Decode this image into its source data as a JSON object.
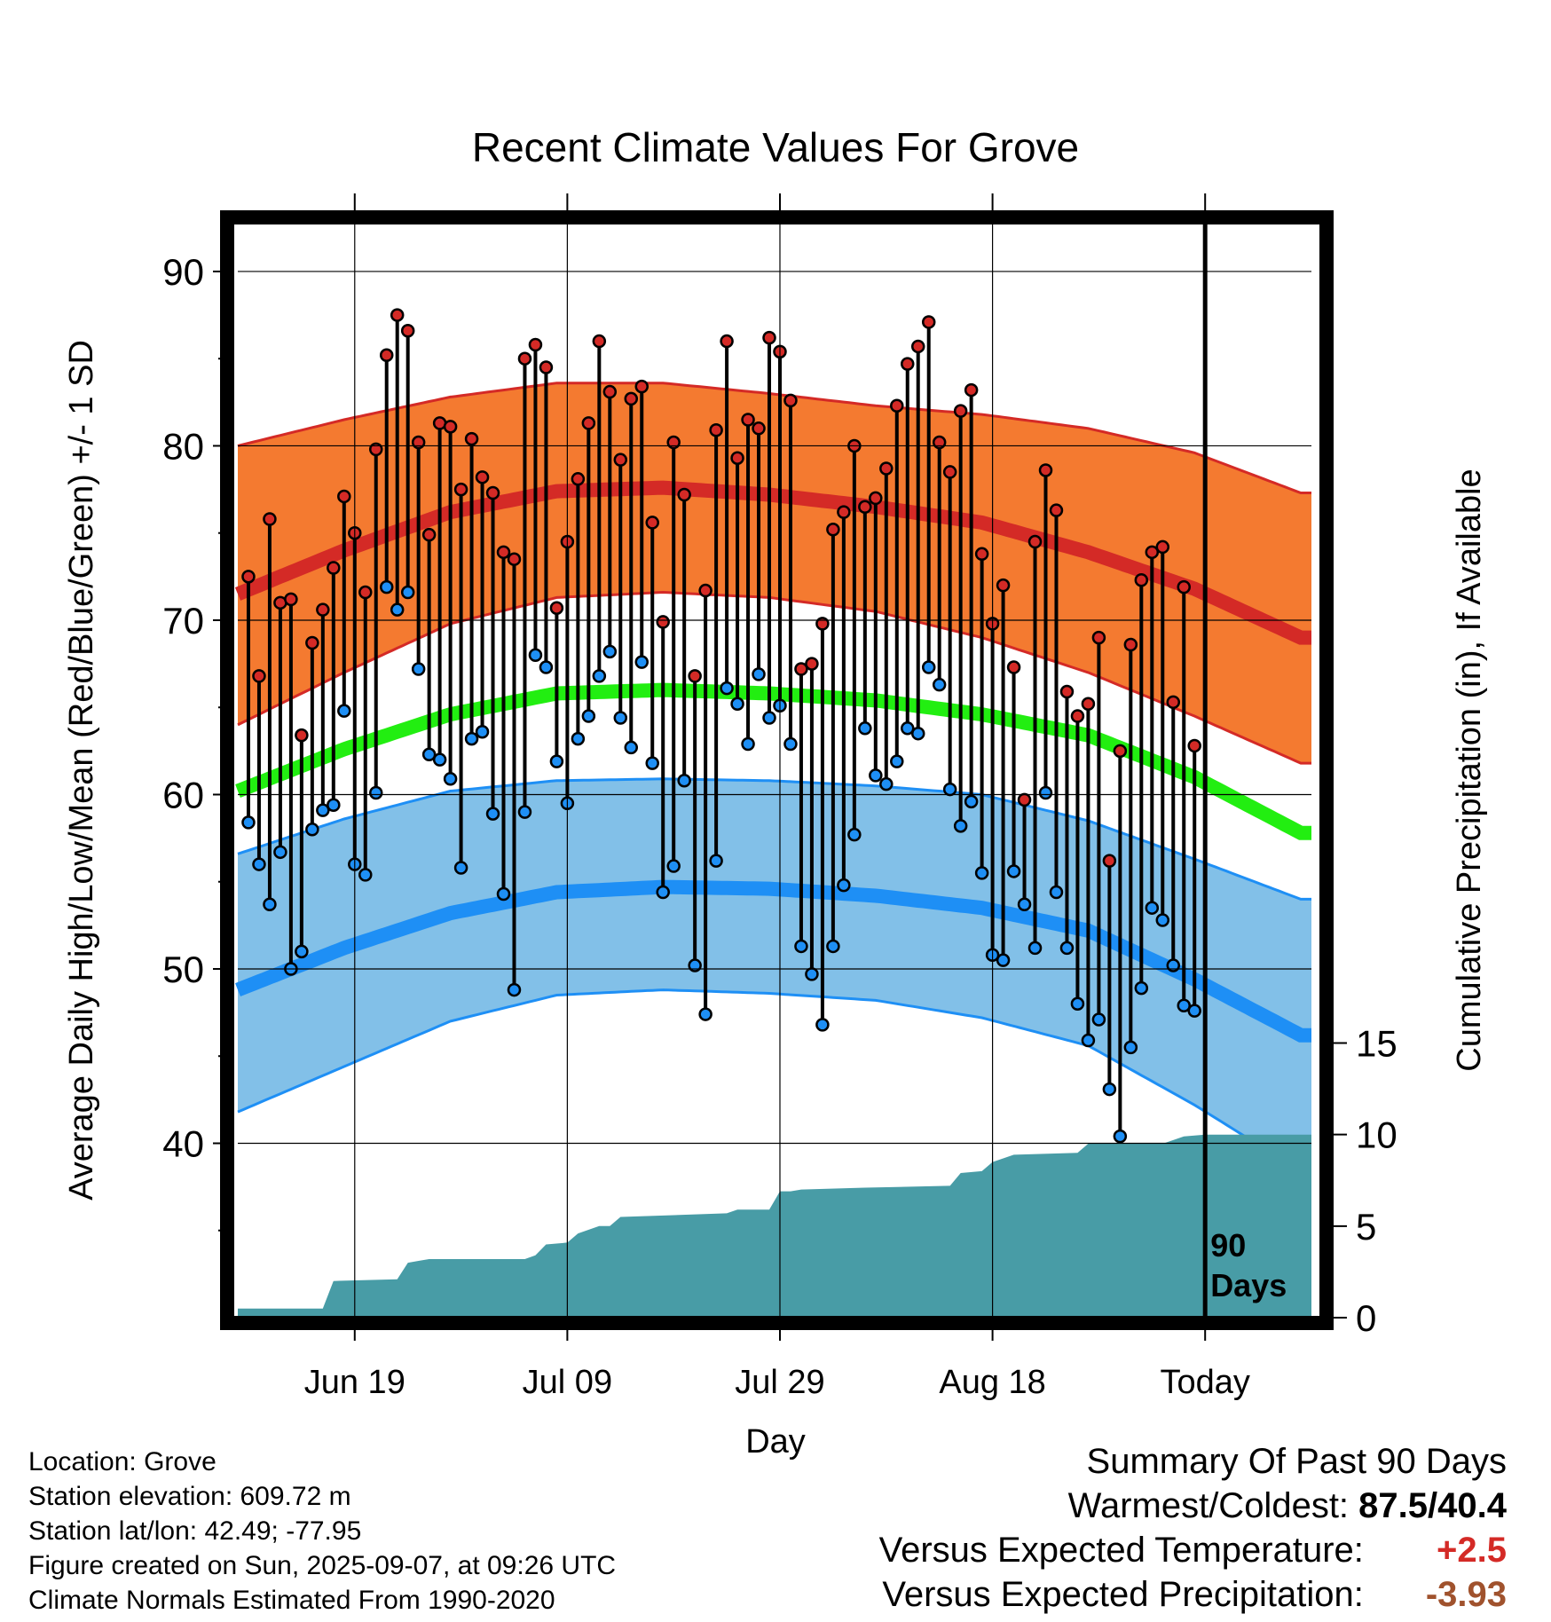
{
  "chart_data": {
    "type": "line",
    "title": "Recent Climate Values For Grove",
    "xlabel": "Day",
    "ylabel": "Average Daily High/Low/Mean (Red/Blue/Green) +/- 1 SD",
    "y2label": "Cumulative Precipitation (in), If Available",
    "ylim": [
      30,
      93
    ],
    "y2lim": [
      0,
      60
    ],
    "yticks": [
      40,
      50,
      60,
      70,
      80,
      90
    ],
    "y2ticks": [
      0,
      5,
      10,
      15
    ],
    "xticks": [
      {
        "label": "Jun 19",
        "day": 11
      },
      {
        "label": "Jul 09",
        "day": 31
      },
      {
        "label": "Jul 29",
        "day": 51
      },
      {
        "label": "Aug 18",
        "day": 71
      },
      {
        "label": "Today",
        "day": 91
      }
    ],
    "xlim": [
      0,
      101
    ],
    "grid": true,
    "today_marker": {
      "day": 91,
      "label": [
        "90",
        "Days"
      ]
    },
    "normals": {
      "high_mean": [
        [
          0,
          71.5
        ],
        [
          10,
          74.0
        ],
        [
          20,
          76.2
        ],
        [
          30,
          77.4
        ],
        [
          40,
          77.6
        ],
        [
          50,
          77.2
        ],
        [
          60,
          76.5
        ],
        [
          70,
          75.6
        ],
        [
          80,
          73.9
        ],
        [
          90,
          71.8
        ],
        [
          100,
          69.0
        ]
      ],
      "high_upper": [
        [
          0,
          80.0
        ],
        [
          10,
          81.5
        ],
        [
          20,
          82.8
        ],
        [
          30,
          83.6
        ],
        [
          40,
          83.6
        ],
        [
          50,
          83.0
        ],
        [
          60,
          82.3
        ],
        [
          70,
          81.8
        ],
        [
          80,
          81.0
        ],
        [
          90,
          79.6
        ],
        [
          100,
          77.3
        ]
      ],
      "high_lower": [
        [
          0,
          64.0
        ],
        [
          10,
          67.0
        ],
        [
          20,
          69.8
        ],
        [
          30,
          71.3
        ],
        [
          40,
          71.6
        ],
        [
          50,
          71.3
        ],
        [
          60,
          70.5
        ],
        [
          70,
          69.0
        ],
        [
          80,
          67.0
        ],
        [
          90,
          64.5
        ],
        [
          100,
          61.8
        ]
      ],
      "mean": [
        [
          0,
          60.2
        ],
        [
          10,
          62.6
        ],
        [
          20,
          64.6
        ],
        [
          30,
          65.8
        ],
        [
          40,
          66.0
        ],
        [
          50,
          65.8
        ],
        [
          60,
          65.4
        ],
        [
          70,
          64.6
        ],
        [
          80,
          63.4
        ],
        [
          90,
          61.0
        ],
        [
          100,
          57.8
        ]
      ],
      "low_mean": [
        [
          0,
          48.8
        ],
        [
          10,
          51.2
        ],
        [
          20,
          53.2
        ],
        [
          30,
          54.4
        ],
        [
          40,
          54.7
        ],
        [
          50,
          54.6
        ],
        [
          60,
          54.2
        ],
        [
          70,
          53.5
        ],
        [
          80,
          52.2
        ],
        [
          90,
          49.4
        ],
        [
          100,
          46.2
        ]
      ],
      "low_upper": [
        [
          0,
          56.6
        ],
        [
          10,
          58.6
        ],
        [
          20,
          60.2
        ],
        [
          30,
          60.8
        ],
        [
          40,
          60.9
        ],
        [
          50,
          60.8
        ],
        [
          60,
          60.5
        ],
        [
          70,
          60.0
        ],
        [
          80,
          58.5
        ],
        [
          90,
          56.3
        ],
        [
          100,
          54.0
        ]
      ],
      "low_lower": [
        [
          0,
          41.8
        ],
        [
          10,
          44.4
        ],
        [
          20,
          47.0
        ],
        [
          30,
          48.5
        ],
        [
          40,
          48.8
        ],
        [
          50,
          48.6
        ],
        [
          60,
          48.2
        ],
        [
          70,
          47.2
        ],
        [
          80,
          45.6
        ],
        [
          90,
          42.2
        ],
        [
          100,
          38.4
        ]
      ]
    },
    "daily": {
      "high": [
        72.5,
        66.8,
        75.8,
        71.0,
        71.2,
        63.4,
        68.7,
        70.6,
        73.0,
        77.1,
        75.0,
        71.6,
        79.8,
        85.2,
        87.5,
        86.6,
        80.2,
        74.9,
        81.3,
        81.1,
        77.5,
        80.4,
        78.2,
        77.3,
        73.9,
        73.5,
        85.0,
        85.8,
        84.5,
        70.7,
        74.5,
        78.1,
        81.3,
        86.0,
        83.1,
        79.2,
        82.7,
        83.4,
        75.6,
        69.9,
        80.2,
        77.2,
        66.8,
        71.7,
        80.9,
        86.0,
        79.3,
        81.5,
        81.0,
        86.2,
        85.4,
        82.6,
        67.2,
        67.5,
        69.8,
        75.2,
        76.2,
        80.0,
        76.5,
        77.0,
        78.7,
        82.3,
        84.7,
        85.7,
        87.1,
        80.2,
        78.5,
        82.0,
        83.2,
        73.8,
        69.8,
        72.0,
        67.3,
        59.7,
        74.5,
        78.6,
        76.3,
        65.9,
        64.5,
        65.2,
        69.0,
        56.2,
        62.5,
        68.6,
        72.3,
        73.9,
        74.2,
        65.3,
        71.9,
        62.8
      ],
      "low": [
        58.4,
        56.0,
        53.7,
        56.7,
        50.0,
        51.0,
        58.0,
        59.1,
        59.4,
        64.8,
        56.0,
        55.4,
        60.1,
        71.9,
        70.6,
        71.6,
        67.2,
        62.3,
        62.0,
        60.9,
        55.8,
        63.2,
        63.6,
        58.9,
        54.3,
        48.8,
        59.0,
        68.0,
        67.3,
        61.9,
        59.5,
        63.2,
        64.5,
        66.8,
        68.2,
        64.4,
        62.7,
        67.6,
        61.8,
        54.4,
        55.9,
        60.8,
        50.2,
        47.4,
        56.2,
        66.1,
        65.2,
        62.9,
        66.9,
        64.4,
        65.1,
        62.9,
        51.3,
        49.7,
        46.8,
        51.3,
        54.8,
        57.7,
        63.8,
        61.1,
        60.6,
        61.9,
        63.8,
        63.5,
        67.3,
        66.3,
        60.3,
        58.2,
        59.6,
        55.5,
        50.8,
        50.5,
        55.6,
        53.7,
        51.2,
        60.1,
        54.4,
        51.2,
        48.0,
        45.9,
        47.1,
        43.1,
        40.4,
        45.5,
        48.9,
        53.5,
        52.8,
        50.2,
        47.9,
        47.6
      ]
    },
    "precipitation": [
      [
        0,
        0.5
      ],
      [
        8,
        0.5
      ],
      [
        9,
        2.0
      ],
      [
        15,
        2.1
      ],
      [
        16,
        3.0
      ],
      [
        17,
        3.1
      ],
      [
        18,
        3.2
      ],
      [
        27,
        3.2
      ],
      [
        28,
        3.4
      ],
      [
        29,
        4.0
      ],
      [
        31,
        4.1
      ],
      [
        32,
        4.6
      ],
      [
        34,
        5.0
      ],
      [
        35,
        5.0
      ],
      [
        36,
        5.5
      ],
      [
        41,
        5.6
      ],
      [
        46,
        5.7
      ],
      [
        47,
        5.9
      ],
      [
        50,
        5.9
      ],
      [
        51,
        6.9
      ],
      [
        52,
        6.9
      ],
      [
        53,
        7.0
      ],
      [
        59,
        7.1
      ],
      [
        67,
        7.2
      ],
      [
        68,
        7.9
      ],
      [
        70,
        8.0
      ],
      [
        71,
        8.5
      ],
      [
        73,
        8.9
      ],
      [
        79,
        9.0
      ],
      [
        80,
        9.5
      ],
      [
        87,
        9.5
      ],
      [
        89,
        9.9
      ],
      [
        91,
        10.0
      ],
      [
        101,
        10.0
      ]
    ]
  },
  "info": {
    "location": "Location: Grove",
    "elevation": "Station elevation: 609.72 m",
    "latlon": "Station lat/lon: 42.49; -77.95",
    "created": "Figure created on Sun, 2025-09-07, at 09:26 UTC",
    "normals": "Climate Normals Estimated From 1990-2020"
  },
  "summary": {
    "heading": "Summary Of Past 90 Days",
    "warmest_label": "Warmest/Coldest:",
    "warmest_value": "87.5/40.4",
    "temp_label": "Versus Expected Temperature:",
    "temp_value": "+2.5",
    "precip_label": "Versus Expected Precipitation:",
    "precip_value": "-3.93"
  },
  "colors": {
    "high_band": "#f47a30",
    "high_line": "#d42a26",
    "mean_line": "#22ee11",
    "low_band": "#82c0e8",
    "low_line": "#1e8ff5",
    "precip": "#489ca6",
    "high_dot": "#d42a26",
    "low_dot": "#1e8ff5",
    "temp_value": "#d42a26",
    "precip_value": "#a0522d"
  }
}
